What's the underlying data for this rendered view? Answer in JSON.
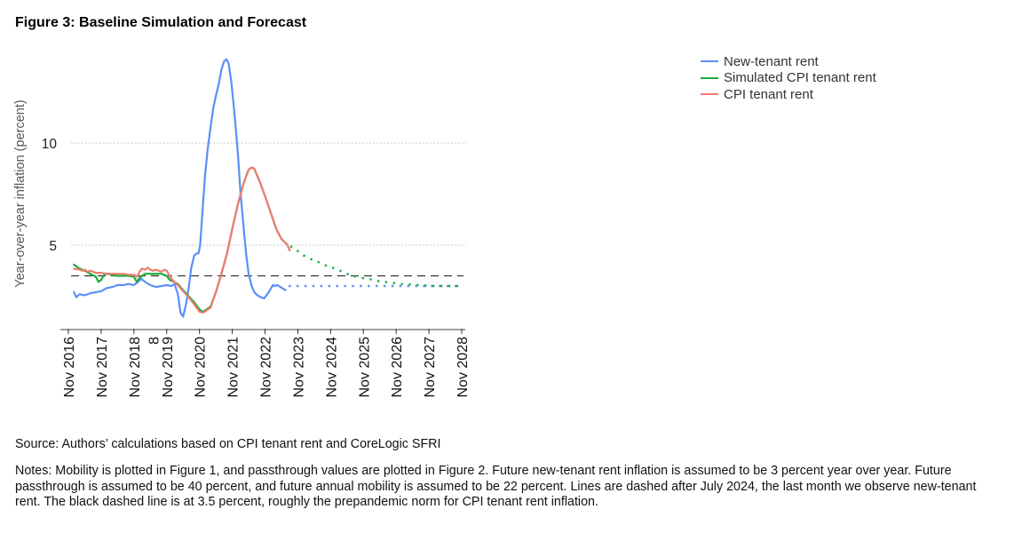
{
  "figure": {
    "title": "Figure 3: Baseline Simulation and Forecast",
    "source": "Source: Authors’ calculations based on CPI tenant rent and CoreLogic SFRI",
    "notes": "Notes: Mobility is plotted in Figure 1, and passthrough values are plotted in Figure 2. Future new-tenant rent inflation is assumed to be 3 percent year over year. Future passthrough is assumed to be 40 percent, and future annual mobility is assumed to be 22 percent. Lines are dashed after July 2024, the last month we observe new-tenant rent. The black dashed line is at 3.5 percent, roughly the prepandemic norm for CPI tenant rent inflation."
  },
  "chart_data": {
    "type": "line",
    "title": "Figure 3: Baseline Simulation and Forecast",
    "xlabel": "",
    "ylabel": "Year-over-year inflation (percent)",
    "x_unit": "decimal year",
    "xlim": [
      2016.83,
      2028.83
    ],
    "ylim": [
      0.2,
      15
    ],
    "yticks": [
      5,
      10
    ],
    "ytick_labels": [
      "5",
      "10"
    ],
    "y_grid": "dotted",
    "xticks": [
      2016.83,
      2017.83,
      2018.83,
      2019.83,
      2020.83,
      2021.83,
      2022.83,
      2023.83,
      2024.83,
      2025.83,
      2026.83,
      2027.83,
      2028.83
    ],
    "xtick_labels": [
      "Nov 2016",
      "Nov 2017",
      "Nov 2018",
      "Nov 2019",
      "Nov 2020",
      "Nov 2021",
      "Nov 2022",
      "Nov 2023",
      "Nov 2024",
      "Nov 2025",
      "Nov 2026",
      "Nov 2027",
      "Nov 2028"
    ],
    "extra_tick_label": {
      "x": 2019.42,
      "label": "8"
    },
    "legend_position": "top-right-outside",
    "reference_line": {
      "y": 3.5,
      "style": "dashed",
      "color": "#000000"
    },
    "series": [
      {
        "name": "New-tenant rent",
        "color": "#5b8ff9",
        "solid": [
          [
            2017.0,
            2.7
          ],
          [
            2017.07,
            2.45
          ],
          [
            2017.17,
            2.6
          ],
          [
            2017.33,
            2.55
          ],
          [
            2017.5,
            2.65
          ],
          [
            2017.67,
            2.7
          ],
          [
            2017.83,
            2.75
          ],
          [
            2018.0,
            2.9
          ],
          [
            2018.17,
            2.95
          ],
          [
            2018.33,
            3.05
          ],
          [
            2018.5,
            3.05
          ],
          [
            2018.67,
            3.1
          ],
          [
            2018.83,
            3.05
          ],
          [
            2018.95,
            3.2
          ],
          [
            2019.05,
            3.35
          ],
          [
            2019.17,
            3.2
          ],
          [
            2019.33,
            3.05
          ],
          [
            2019.5,
            2.95
          ],
          [
            2019.67,
            3.0
          ],
          [
            2019.83,
            3.05
          ],
          [
            2019.97,
            3.0
          ],
          [
            2020.07,
            3.1
          ],
          [
            2020.17,
            2.6
          ],
          [
            2020.25,
            1.7
          ],
          [
            2020.33,
            1.5
          ],
          [
            2020.42,
            2.1
          ],
          [
            2020.5,
            2.9
          ],
          [
            2020.58,
            3.9
          ],
          [
            2020.67,
            4.5
          ],
          [
            2020.75,
            4.6
          ],
          [
            2020.8,
            4.6
          ],
          [
            2020.85,
            5.0
          ],
          [
            2020.92,
            6.6
          ],
          [
            2021.0,
            8.4
          ],
          [
            2021.08,
            9.7
          ],
          [
            2021.17,
            10.8
          ],
          [
            2021.25,
            11.7
          ],
          [
            2021.33,
            12.3
          ],
          [
            2021.42,
            12.9
          ],
          [
            2021.5,
            13.6
          ],
          [
            2021.58,
            14.0
          ],
          [
            2021.65,
            14.1
          ],
          [
            2021.72,
            13.9
          ],
          [
            2021.8,
            13.0
          ],
          [
            2021.9,
            11.4
          ],
          [
            2022.0,
            9.5
          ],
          [
            2022.08,
            7.6
          ],
          [
            2022.17,
            6.0
          ],
          [
            2022.25,
            4.6
          ],
          [
            2022.33,
            3.6
          ],
          [
            2022.42,
            3.0
          ],
          [
            2022.5,
            2.7
          ],
          [
            2022.6,
            2.55
          ],
          [
            2022.7,
            2.45
          ],
          [
            2022.8,
            2.4
          ],
          [
            2022.9,
            2.6
          ],
          [
            2023.0,
            2.85
          ],
          [
            2023.07,
            3.05
          ],
          [
            2023.13,
            3.0
          ],
          [
            2023.2,
            3.05
          ],
          [
            2023.3,
            2.95
          ],
          [
            2023.4,
            2.85
          ],
          [
            2023.45,
            2.8
          ]
        ],
        "forecast_dotted": [
          [
            2023.55,
            3.0
          ],
          [
            2024.0,
            3.0
          ],
          [
            2025.0,
            3.0
          ],
          [
            2026.0,
            3.0
          ],
          [
            2027.0,
            3.0
          ],
          [
            2028.0,
            3.0
          ],
          [
            2028.83,
            3.0
          ]
        ]
      },
      {
        "name": "Simulated CPI tenant rent",
        "color": "#1aad3c",
        "solid": [
          [
            2017.0,
            4.05
          ],
          [
            2017.17,
            3.85
          ],
          [
            2017.33,
            3.75
          ],
          [
            2017.5,
            3.6
          ],
          [
            2017.67,
            3.45
          ],
          [
            2017.75,
            3.2
          ],
          [
            2017.83,
            3.3
          ],
          [
            2017.92,
            3.55
          ],
          [
            2018.0,
            3.6
          ],
          [
            2018.17,
            3.55
          ],
          [
            2018.33,
            3.5
          ],
          [
            2018.5,
            3.5
          ],
          [
            2018.67,
            3.5
          ],
          [
            2018.83,
            3.45
          ],
          [
            2018.92,
            3.2
          ],
          [
            2019.0,
            3.4
          ],
          [
            2019.17,
            3.6
          ],
          [
            2019.33,
            3.6
          ],
          [
            2019.5,
            3.6
          ],
          [
            2019.67,
            3.6
          ],
          [
            2019.83,
            3.5
          ],
          [
            2019.92,
            3.3
          ],
          [
            2020.0,
            3.25
          ],
          [
            2020.17,
            3.1
          ],
          [
            2020.33,
            2.8
          ],
          [
            2020.5,
            2.5
          ],
          [
            2020.67,
            2.2
          ],
          [
            2020.83,
            1.85
          ],
          [
            2020.92,
            1.75
          ],
          [
            2021.0,
            1.8
          ],
          [
            2021.17,
            2.0
          ],
          [
            2021.33,
            2.7
          ],
          [
            2021.5,
            3.6
          ],
          [
            2021.67,
            4.6
          ],
          [
            2021.83,
            5.8
          ],
          [
            2022.0,
            7.0
          ],
          [
            2022.17,
            8.0
          ],
          [
            2022.33,
            8.7
          ],
          [
            2022.42,
            8.8
          ],
          [
            2022.5,
            8.75
          ],
          [
            2022.67,
            8.1
          ],
          [
            2022.83,
            7.4
          ],
          [
            2023.0,
            6.6
          ],
          [
            2023.17,
            5.8
          ],
          [
            2023.33,
            5.3
          ],
          [
            2023.5,
            5.05
          ]
        ],
        "forecast_dotted": [
          [
            2023.6,
            4.95
          ],
          [
            2023.8,
            4.75
          ],
          [
            2024.0,
            4.5
          ],
          [
            2024.25,
            4.3
          ],
          [
            2024.5,
            4.15
          ],
          [
            2024.75,
            3.95
          ],
          [
            2025.0,
            3.85
          ],
          [
            2025.25,
            3.65
          ],
          [
            2025.5,
            3.5
          ],
          [
            2025.75,
            3.4
          ],
          [
            2026.0,
            3.35
          ],
          [
            2026.25,
            3.25
          ],
          [
            2026.5,
            3.2
          ],
          [
            2026.75,
            3.15
          ],
          [
            2027.0,
            3.1
          ],
          [
            2027.5,
            3.05
          ],
          [
            2028.0,
            3.0
          ],
          [
            2028.83,
            3.0
          ]
        ]
      },
      {
        "name": "CPI tenant rent",
        "color": "#ef7b6f",
        "solid": [
          [
            2017.0,
            3.85
          ],
          [
            2017.17,
            3.8
          ],
          [
            2017.25,
            3.75
          ],
          [
            2017.33,
            3.8
          ],
          [
            2017.42,
            3.7
          ],
          [
            2017.5,
            3.75
          ],
          [
            2017.67,
            3.65
          ],
          [
            2017.83,
            3.65
          ],
          [
            2018.0,
            3.6
          ],
          [
            2018.17,
            3.6
          ],
          [
            2018.33,
            3.6
          ],
          [
            2018.5,
            3.6
          ],
          [
            2018.67,
            3.55
          ],
          [
            2018.83,
            3.55
          ],
          [
            2018.92,
            3.45
          ],
          [
            2019.0,
            3.7
          ],
          [
            2019.08,
            3.85
          ],
          [
            2019.17,
            3.8
          ],
          [
            2019.25,
            3.9
          ],
          [
            2019.33,
            3.8
          ],
          [
            2019.42,
            3.75
          ],
          [
            2019.5,
            3.8
          ],
          [
            2019.67,
            3.7
          ],
          [
            2019.75,
            3.8
          ],
          [
            2019.83,
            3.75
          ],
          [
            2019.92,
            3.5
          ],
          [
            2020.0,
            3.3
          ],
          [
            2020.17,
            3.05
          ],
          [
            2020.33,
            2.75
          ],
          [
            2020.5,
            2.45
          ],
          [
            2020.67,
            2.1
          ],
          [
            2020.83,
            1.75
          ],
          [
            2020.92,
            1.7
          ],
          [
            2021.0,
            1.75
          ],
          [
            2021.17,
            1.95
          ],
          [
            2021.33,
            2.7
          ],
          [
            2021.5,
            3.6
          ],
          [
            2021.67,
            4.6
          ],
          [
            2021.83,
            5.8
          ],
          [
            2022.0,
            7.0
          ],
          [
            2022.17,
            8.0
          ],
          [
            2022.33,
            8.7
          ],
          [
            2022.42,
            8.8
          ],
          [
            2022.5,
            8.75
          ],
          [
            2022.67,
            8.1
          ],
          [
            2022.83,
            7.4
          ],
          [
            2023.0,
            6.6
          ],
          [
            2023.17,
            5.8
          ],
          [
            2023.33,
            5.3
          ],
          [
            2023.5,
            5.05
          ],
          [
            2023.58,
            4.75
          ]
        ],
        "forecast_dotted": []
      }
    ]
  }
}
